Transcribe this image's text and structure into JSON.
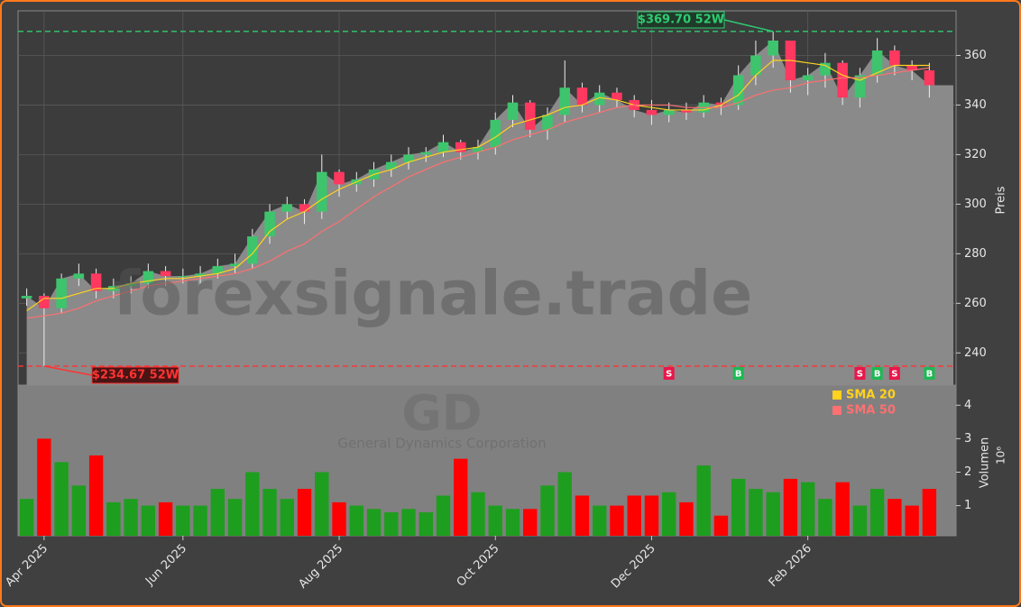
{
  "chart_data": {
    "type": "candlestick",
    "watermark": "forexsignale.trade",
    "ticker": "GD",
    "company": "General Dynamics Corporation",
    "ylabel": "Preis",
    "categories": [
      null,
      "Apr 2025",
      null,
      null,
      null,
      null,
      null,
      null,
      null,
      "Jun 2025",
      null,
      null,
      null,
      null,
      null,
      null,
      null,
      null,
      "Aug 2025",
      null,
      null,
      null,
      null,
      null,
      null,
      null,
      null,
      "Oct 2025",
      null,
      null,
      null,
      null,
      null,
      null,
      null,
      null,
      "Dec 2025",
      null,
      null,
      null,
      null,
      null,
      null,
      null,
      null,
      "Feb 2026",
      null,
      null,
      null,
      null,
      null,
      null,
      null
    ],
    "open": [
      262,
      263,
      258,
      270,
      272,
      265,
      267,
      268,
      273,
      271,
      271,
      272,
      275,
      276,
      287,
      297,
      300,
      297,
      313,
      308,
      310,
      314,
      317,
      320,
      321,
      325,
      321,
      323,
      334,
      341,
      330,
      336,
      347,
      340,
      345,
      342,
      338,
      336,
      338,
      337,
      341,
      340,
      352,
      360,
      366,
      350,
      352,
      357,
      343,
      352,
      362,
      356,
      354
    ],
    "high": [
      266,
      264,
      272,
      276,
      274,
      270,
      271,
      276,
      275,
      274,
      275,
      278,
      280,
      290,
      300,
      303,
      302,
      320,
      314,
      313,
      317,
      320,
      323,
      323,
      328,
      326,
      326,
      337,
      344,
      342,
      339,
      358,
      349,
      348,
      347,
      344,
      342,
      341,
      341,
      344,
      343,
      356,
      366,
      369.7,
      366,
      355,
      361,
      358,
      355,
      367,
      364,
      358,
      357
    ],
    "low": [
      259,
      234.67,
      256,
      267,
      262,
      262,
      264,
      266,
      267,
      268,
      268,
      270,
      272,
      274,
      284,
      294,
      292,
      294,
      303,
      305,
      307,
      311,
      314,
      317,
      319,
      318,
      318,
      320,
      331,
      327,
      326,
      333,
      337,
      337,
      339,
      335,
      332,
      333,
      334,
      335,
      336,
      338,
      348,
      355,
      345,
      344,
      347,
      340,
      339,
      349,
      352,
      350,
      343
    ],
    "close": [
      263,
      258,
      270,
      272,
      265,
      267,
      268,
      273,
      271,
      271,
      272,
      275,
      276,
      287,
      297,
      300,
      297,
      313,
      308,
      310,
      314,
      317,
      320,
      321,
      325,
      321,
      323,
      334,
      341,
      330,
      336,
      347,
      340,
      345,
      342,
      338,
      336,
      338,
      337,
      341,
      340,
      352,
      360,
      366,
      350,
      352,
      357,
      343,
      352,
      362,
      356,
      354,
      348
    ],
    "up_color": "#3ec46d",
    "down_color": "#ff3860",
    "series": [
      {
        "name": "SMA 20",
        "color": "#ffd21f",
        "values": [
          257,
          262,
          262,
          264,
          266,
          266,
          268,
          269,
          270,
          270,
          271,
          272,
          274,
          280,
          289,
          294,
          297,
          302,
          306,
          309,
          312,
          314,
          317,
          319,
          321,
          322,
          323,
          327,
          332,
          334,
          336,
          339,
          340,
          343,
          342,
          340,
          339,
          338,
          338,
          338,
          340,
          344,
          352,
          358,
          358,
          357,
          356,
          352,
          350,
          353,
          356,
          356,
          356
        ]
      },
      {
        "name": "SMA 50",
        "color": "#ff7070",
        "values": [
          254,
          255,
          256,
          258,
          261,
          263,
          265,
          267,
          268,
          269,
          270,
          271,
          272,
          274,
          277,
          281,
          284,
          289,
          293,
          298,
          303,
          307,
          311,
          314,
          317,
          319,
          321,
          323,
          326,
          328,
          330,
          333,
          335,
          337,
          339,
          340,
          340,
          340,
          339,
          339,
          339,
          341,
          344,
          346,
          347,
          349,
          350,
          351,
          351,
          352,
          353,
          354,
          355
        ]
      }
    ],
    "signals": [
      null,
      null,
      null,
      null,
      null,
      null,
      null,
      null,
      null,
      null,
      null,
      null,
      null,
      null,
      null,
      null,
      null,
      null,
      null,
      null,
      null,
      null,
      null,
      null,
      null,
      null,
      null,
      null,
      null,
      null,
      null,
      null,
      null,
      null,
      null,
      null,
      null,
      "S",
      null,
      null,
      null,
      "B",
      null,
      null,
      null,
      null,
      null,
      null,
      "S",
      "B",
      "S",
      null,
      "B"
    ],
    "hlines": [
      {
        "value": 369.7,
        "label": "$369.70 52W",
        "color": "#2ecc71"
      },
      {
        "value": 234.67,
        "label": "$234.67 52W",
        "color": "#ff3333"
      }
    ],
    "ylim": [
      227,
      378
    ],
    "yticks": [
      240,
      260,
      280,
      300,
      320,
      340,
      360
    ],
    "grid": true,
    "volume": {
      "label": "Volumen",
      "exponent": "10⁶",
      "up_color": "#1e9e1e",
      "down_color": "#ff0000",
      "values": [
        1.2,
        3.0,
        2.3,
        1.6,
        2.5,
        1.1,
        1.2,
        1.0,
        1.1,
        1.0,
        1.0,
        1.5,
        1.2,
        2.0,
        1.5,
        1.2,
        1.5,
        2.0,
        1.1,
        1.0,
        0.9,
        0.8,
        0.9,
        0.8,
        1.3,
        2.4,
        1.4,
        1.0,
        0.9,
        0.9,
        1.6,
        2.0,
        1.3,
        1.0,
        1.0,
        1.3,
        1.3,
        1.4,
        1.1,
        2.2,
        0.7,
        1.8,
        1.5,
        1.4,
        1.8,
        1.7,
        1.2,
        1.7,
        1.0,
        1.5,
        1.2,
        1.0,
        1.5
      ],
      "ylim": [
        0.1,
        4.6
      ],
      "yticks": [
        1,
        2,
        3,
        4
      ]
    }
  }
}
